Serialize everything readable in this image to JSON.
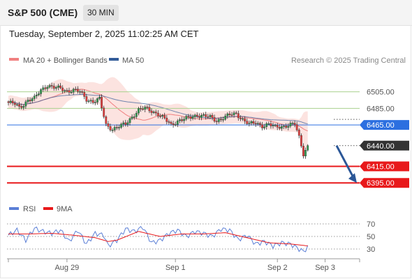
{
  "header": {
    "symbol": "S&P 500 (CME)",
    "timeframe": "30 MIN",
    "timestamp": "Tuesday, September 2, 2025 11:02:25 AM CET"
  },
  "legend": {
    "ma20_label": "MA 20 + Bollinger Bands",
    "ma50_label": "MA 50",
    "copyright": "Research © 2025 Trading Central"
  },
  "colors": {
    "candle_up": "#2e9e4f",
    "candle_down": "#e63b3b",
    "ma20": "#f08080",
    "ma50": "#335c99",
    "bollinger_fill": "#fbd9d6",
    "resistance_line": "#a9d18e",
    "pivot_line": "#2c6fe0",
    "support_line": "#e8191b",
    "arrow": "#2b5797",
    "rsi": "#5b7fd6",
    "rsi_ma": "#e8191b"
  },
  "chart_data": {
    "type": "line",
    "title": "S&P 500 (CME) 30 MIN",
    "x_tick_labels": [
      "Aug 29",
      "Sep 1",
      "Sep 2",
      "Sep 3"
    ],
    "y_range": [
      6380,
      6535
    ],
    "price_series": {
      "name": "price",
      "x": [
        0,
        3,
        5,
        7,
        9,
        12,
        15,
        18,
        21,
        24,
        27,
        30,
        33,
        36,
        39,
        42,
        45,
        48,
        51,
        54,
        57,
        60,
        63,
        66,
        69,
        72,
        75,
        78,
        81,
        84,
        87,
        90,
        93,
        96,
        99,
        102,
        105,
        108,
        111,
        114,
        117,
        120,
        123,
        126,
        129,
        132,
        134,
        136,
        138
      ],
      "y": [
        6492,
        6490,
        6486,
        6490,
        6495,
        6497,
        6507,
        6513,
        6510,
        6509,
        6506,
        6507,
        6505,
        6496,
        6493,
        6496,
        6465,
        6460,
        6463,
        6466,
        6475,
        6483,
        6485,
        6482,
        6478,
        6472,
        6465,
        6470,
        6472,
        6474,
        6477,
        6476,
        6474,
        6470,
        6474,
        6477,
        6478,
        6472,
        6466,
        6467,
        6464,
        6466,
        6462,
        6463,
        6465,
        6466,
        6450,
        6430,
        6440
      ]
    },
    "rsi_series": {
      "name": "RSI",
      "x": [
        0,
        4,
        8,
        12,
        16,
        20,
        24,
        28,
        32,
        36,
        40,
        44,
        46,
        50,
        54,
        58,
        62,
        66,
        70,
        74,
        78,
        82,
        86,
        90,
        94,
        98,
        102,
        106,
        110,
        114,
        118,
        122,
        126,
        130,
        134,
        136,
        138
      ],
      "y": [
        52,
        60,
        44,
        63,
        58,
        55,
        60,
        42,
        60,
        38,
        55,
        52,
        35,
        44,
        62,
        58,
        65,
        40,
        44,
        55,
        60,
        50,
        58,
        55,
        50,
        62,
        60,
        45,
        52,
        38,
        42,
        35,
        40,
        38,
        30,
        26,
        33
      ]
    },
    "rsi_ma_series": {
      "name": "9MA",
      "x": [
        0,
        10,
        20,
        30,
        40,
        46,
        50,
        60,
        70,
        80,
        90,
        100,
        110,
        120,
        130,
        138
      ],
      "y": [
        54,
        54,
        55,
        52,
        48,
        42,
        44,
        58,
        50,
        54,
        54,
        56,
        48,
        40,
        38,
        35
      ]
    },
    "rsi_range": [
      20,
      80
    ],
    "rsi_levels": [
      "70",
      "50",
      "30"
    ],
    "levels": [
      {
        "value": 6505,
        "label": "6505.00",
        "kind": "resistance"
      },
      {
        "value": 6485,
        "label": "6485.00",
        "kind": "resistance"
      },
      {
        "value": 6465,
        "label": "6465.00",
        "kind": "pivot"
      },
      {
        "value": 6440,
        "label": "6440.00",
        "kind": "last"
      },
      {
        "value": 6415,
        "label": "6415.00",
        "kind": "support"
      },
      {
        "value": 6395,
        "label": "6395.00",
        "kind": "support"
      }
    ],
    "forecast": {
      "from": 6440,
      "to": 6395
    }
  }
}
